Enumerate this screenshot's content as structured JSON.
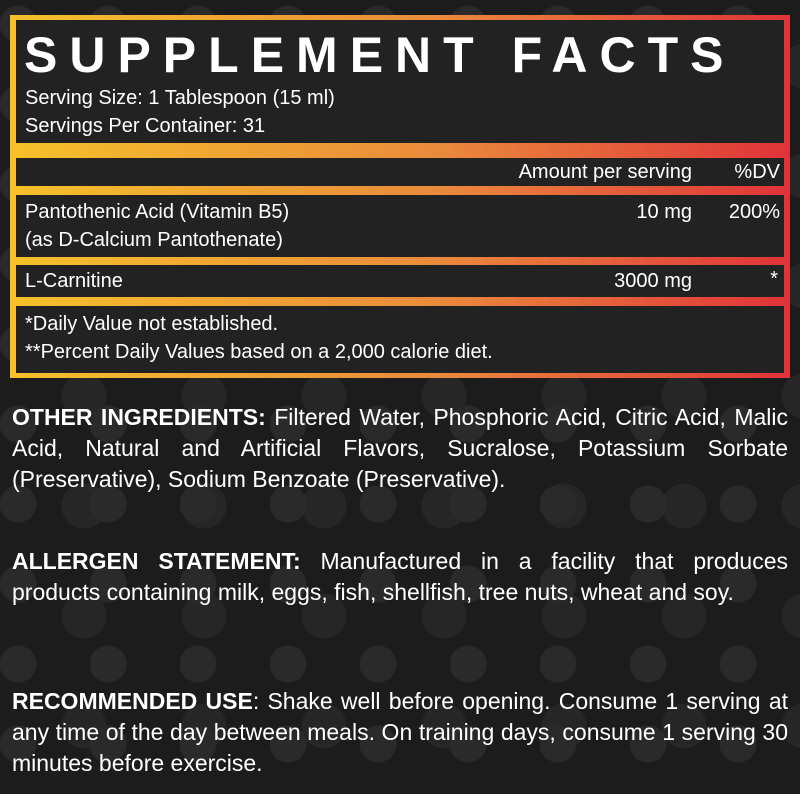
{
  "facts": {
    "title": "SUPPLEMENT FACTS",
    "serving_size": "Serving Size: 1 Tablespoon (15 ml)",
    "servings_per_container": "Servings Per Container: 31",
    "header_amount": "Amount per serving",
    "header_dv": "%DV",
    "rows": [
      {
        "name": "Pantothenic Acid (Vitamin B5)",
        "sub": "(as D-Calcium Pantothenate)",
        "amount": "10 mg",
        "dv": "200%"
      },
      {
        "name": "L-Carnitine",
        "amount": "3000 mg",
        "dv": "*"
      }
    ],
    "footnote1": "*Daily Value not established.",
    "footnote2": "**Percent Daily Values based on a 2,000 calorie diet."
  },
  "other_ingredients": {
    "label": "OTHER INGREDIENTS:",
    "text": " Filtered Water, Phosphoric Acid, Citric Acid, Malic Acid, Natural and Artificial Flavors, Sucralose, Potassium Sorbate (Preservative), Sodium Benzoate (Preservative)."
  },
  "allergen": {
    "label": "ALLERGEN STATEMENT:",
    "text": " Manufactured in a facility that produces products containing milk, eggs, fish, shellfish, tree nuts, wheat and soy."
  },
  "recommended": {
    "label": "RECOMMENDED USE",
    "text": ": Shake well before opening. Consume 1 serving at any time of the day between meals. On training days, consume 1 serving 30 minutes before exercise."
  },
  "colors": {
    "gradient_start": "#f5c12a",
    "gradient_mid": "#ea8a3c",
    "gradient_end": "#e0333a",
    "background": "#1c1c1c"
  }
}
